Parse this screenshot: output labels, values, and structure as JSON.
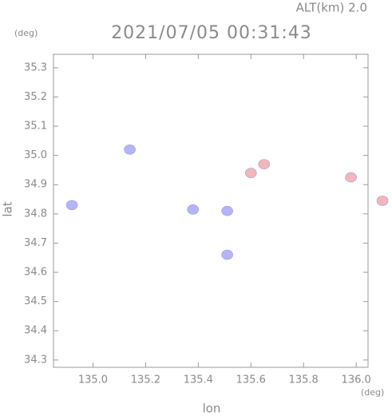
{
  "chart_data": {
    "type": "scatter",
    "annotation": "ALT(km) 2.0",
    "title": "2021/07/05 00:31:43",
    "y_unit": "(deg)",
    "x_unit": "(deg)",
    "ylabel": "lat",
    "xlabel": "lon",
    "xlim": [
      134.85,
      136.045
    ],
    "ylim": [
      34.275,
      35.346
    ],
    "xticks": [
      {
        "value": 135,
        "label": "135.0"
      },
      135.2,
      135.4,
      135.6,
      135.8,
      {
        "value": 136,
        "label": "136.0"
      }
    ],
    "yticks": [
      35.3,
      35.2,
      35.1,
      {
        "value": 35,
        "label": "35.0"
      },
      34.9,
      34.8,
      34.7,
      34.6,
      34.5,
      34.4,
      34.3
    ],
    "series": [
      {
        "color": "#b4b4f6",
        "x": [
          134.92,
          135.14,
          135.38,
          135.51,
          135.51
        ],
        "y": [
          34.83,
          35.02,
          34.815,
          34.81,
          34.66
        ]
      },
      {
        "color": "#f4b6ba",
        "x": [
          135.6,
          135.65,
          135.98,
          136.1
        ],
        "y": [
          34.94,
          34.97,
          34.925,
          34.845
        ]
      }
    ]
  }
}
